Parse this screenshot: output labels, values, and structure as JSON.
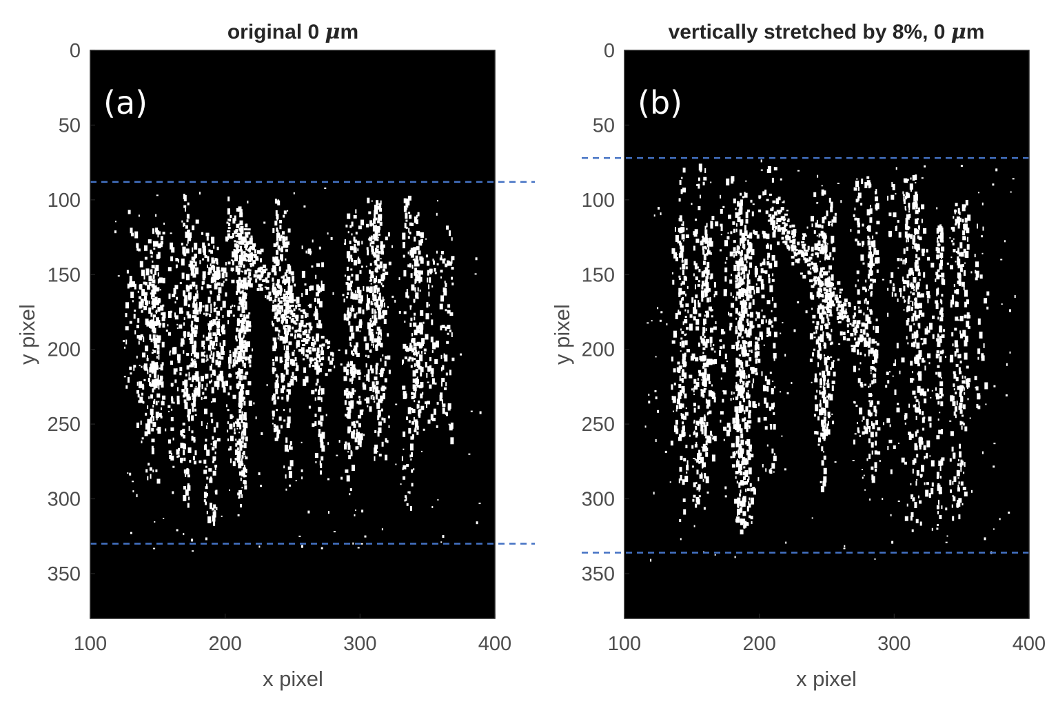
{
  "chart_data": [
    {
      "type": "heatmap",
      "panel_label": "(a)",
      "title_prefix": "original 0 ",
      "title_mu": "μ",
      "title_suffix": "m",
      "xlabel": "x pixel",
      "ylabel": "y pixel",
      "xlim": [
        100,
        400
      ],
      "ylim": [
        380,
        0
      ],
      "xticks": [
        100,
        200,
        300,
        400
      ],
      "yticks": [
        0,
        50,
        100,
        150,
        200,
        250,
        300,
        350
      ],
      "background": "#000000",
      "foreground": "#ffffff",
      "guide_lines_y": [
        88,
        330
      ],
      "guide_line_color": "#4472c4",
      "seed": 7,
      "speckle_region": {
        "x": [
          115,
          390
        ],
        "y": [
          90,
          335
        ]
      }
    },
    {
      "type": "heatmap",
      "panel_label": "(b)",
      "title_prefix": "vertically stretched by 8%, 0 ",
      "title_mu": "μ",
      "title_suffix": "m",
      "xlabel": "x pixel",
      "ylabel": "y pixel",
      "xlim": [
        100,
        400
      ],
      "ylim": [
        380,
        0
      ],
      "xticks": [
        100,
        200,
        300,
        400
      ],
      "yticks": [
        0,
        50,
        100,
        150,
        200,
        250,
        300,
        350
      ],
      "background": "#000000",
      "foreground": "#ffffff",
      "guide_lines_y": [
        72,
        336
      ],
      "guide_line_color": "#4472c4",
      "seed": 11,
      "speckle_region": {
        "x": [
          115,
          390
        ],
        "y": [
          72,
          342
        ]
      }
    }
  ]
}
